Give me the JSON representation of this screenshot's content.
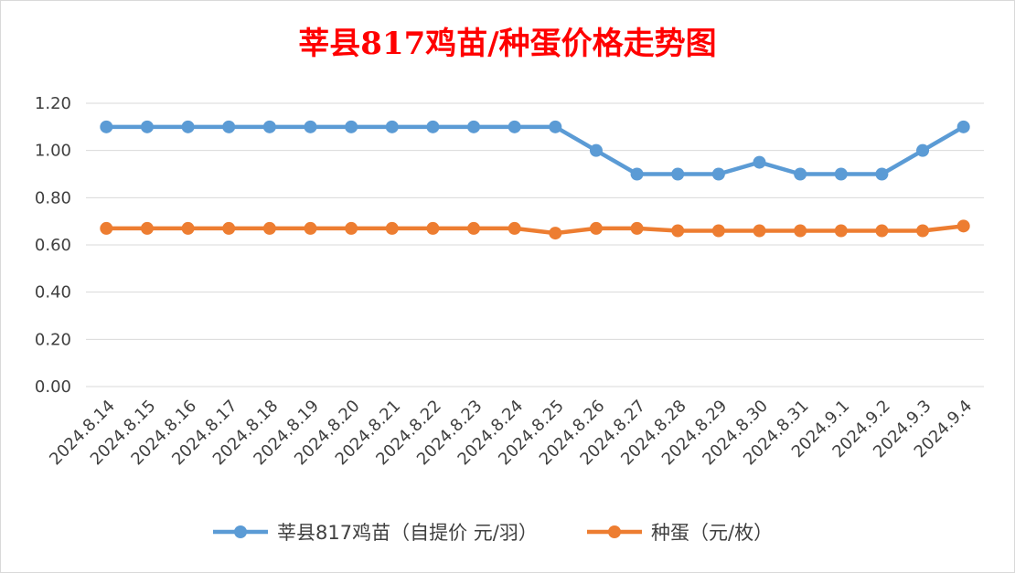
{
  "chart_data": {
    "type": "line",
    "title": "莘县817鸡苗/种蛋价格走势图",
    "xlabel": "",
    "ylabel": "",
    "ylim": [
      0,
      1.2
    ],
    "y_ticks": [
      "0.00",
      "0.20",
      "0.40",
      "0.60",
      "0.80",
      "1.00",
      "1.20"
    ],
    "grid": "horizontal",
    "legend_position": "bottom",
    "categories": [
      "2024.8.14",
      "2024.8.15",
      "2024.8.16",
      "2024.8.17",
      "2024.8.18",
      "2024.8.19",
      "2024.8.20",
      "2024.8.21",
      "2024.8.22",
      "2024.8.23",
      "2024.8.24",
      "2024.8.25",
      "2024.8.26",
      "2024.8.27",
      "2024.8.28",
      "2024.8.29",
      "2024.8.30",
      "2024.8.31",
      "2024.9.1",
      "2024.9.2",
      "2024.9.3",
      "2024.9.4"
    ],
    "series": [
      {
        "name": "莘县817鸡苗（自提价 元/羽）",
        "color": "#5b9bd5",
        "values": [
          1.1,
          1.1,
          1.1,
          1.1,
          1.1,
          1.1,
          1.1,
          1.1,
          1.1,
          1.1,
          1.1,
          1.1,
          1.0,
          0.9,
          0.9,
          0.9,
          0.95,
          0.9,
          0.9,
          0.9,
          1.0,
          1.1
        ]
      },
      {
        "name": "种蛋（元/枚）",
        "color": "#ed7d31",
        "values": [
          0.67,
          0.67,
          0.67,
          0.67,
          0.67,
          0.67,
          0.67,
          0.67,
          0.67,
          0.67,
          0.67,
          0.65,
          0.67,
          0.67,
          0.66,
          0.66,
          0.66,
          0.66,
          0.66,
          0.66,
          0.66,
          0.68
        ]
      }
    ]
  },
  "colors": {
    "title": "#ff0000",
    "gridline": "#d9d9d9",
    "tick_text": "#404040"
  }
}
